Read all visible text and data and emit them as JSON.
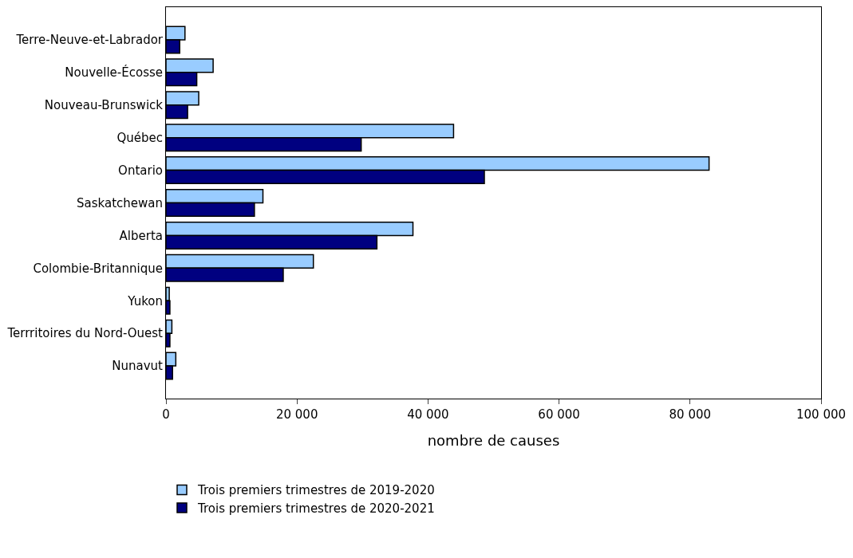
{
  "chart_data": {
    "type": "bar",
    "orientation": "horizontal",
    "categories": [
      "Terre-Neuve-et-Labrador",
      "Nouvelle-Écosse",
      "Nouveau-Brunswick",
      "Québec",
      "Ontario",
      "Saskatchewan",
      "Alberta",
      "Colombie-Britannique",
      "Yukon",
      "Terrritoires du Nord-Ouest",
      "Nunavut"
    ],
    "series": [
      {
        "name": "Trois premiers trimestres de 2019-2020",
        "color": "#99ccff",
        "values": [
          2900,
          7200,
          5000,
          43900,
          82900,
          14800,
          37700,
          22500,
          500,
          900,
          1500
        ]
      },
      {
        "name": "Trois premiers trimestres de 2020-2021",
        "color": "#000080",
        "values": [
          2100,
          4700,
          3300,
          29800,
          48600,
          13500,
          32200,
          17900,
          600,
          600,
          1000
        ]
      }
    ],
    "xlabel": "nombre de causes",
    "xlim": [
      0,
      100000
    ],
    "xticks": [
      {
        "value": 0,
        "label": "0"
      },
      {
        "value": 20000,
        "label": "20 000"
      },
      {
        "value": 40000,
        "label": "40 000"
      },
      {
        "value": 60000,
        "label": "60 000"
      },
      {
        "value": 80000,
        "label": "80 000"
      },
      {
        "value": 100000,
        "label": "100 000"
      }
    ],
    "legend": "bottom"
  }
}
